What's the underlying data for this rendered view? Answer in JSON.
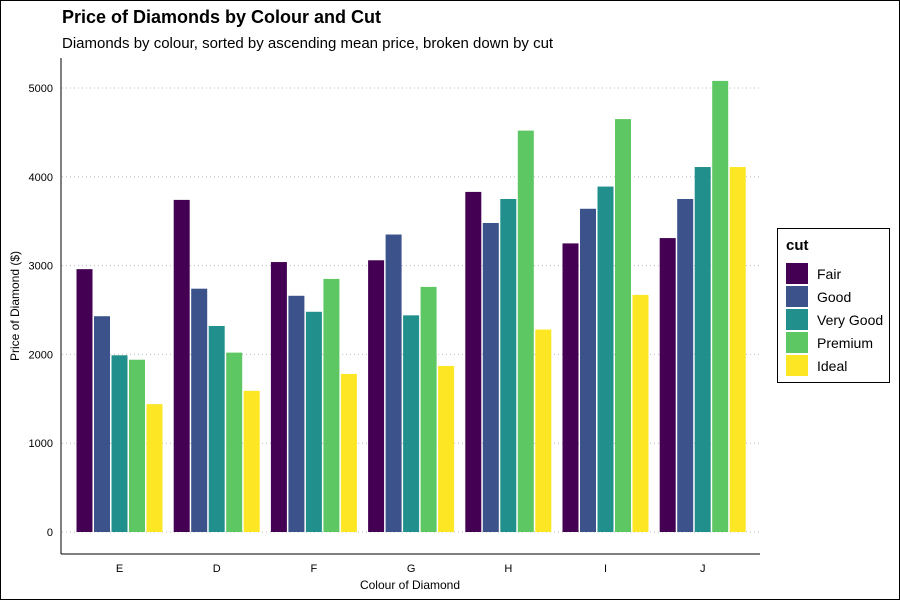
{
  "chart_data": {
    "type": "bar",
    "title": "Price of Diamonds by Colour and Cut",
    "subtitle": "Diamonds by colour, sorted by ascending mean price, broken down by cut",
    "xlabel": "Colour of Diamond",
    "ylabel": "Price of Diamond ($)",
    "categories": [
      "E",
      "D",
      "F",
      "G",
      "H",
      "I",
      "J"
    ],
    "ylim": [
      0,
      5300
    ],
    "yticks": [
      0,
      1000,
      2000,
      3000,
      4000,
      5000
    ],
    "grid": "horizontal-dotted",
    "legend_title": "cut",
    "legend_position": "right",
    "series": [
      {
        "name": "Fair",
        "color": "#440154",
        "values": [
          2960,
          3740,
          3040,
          3060,
          3830,
          3250,
          3310
        ]
      },
      {
        "name": "Good",
        "color": "#3B528B",
        "values": [
          2430,
          2740,
          2660,
          3350,
          3480,
          3640,
          3750
        ]
      },
      {
        "name": "Very Good",
        "color": "#21908C",
        "values": [
          1990,
          2320,
          2480,
          2440,
          3750,
          3890,
          4110
        ]
      },
      {
        "name": "Premium",
        "color": "#5DC863",
        "values": [
          1940,
          2020,
          2850,
          2760,
          4520,
          4650,
          5080
        ]
      },
      {
        "name": "Ideal",
        "color": "#FDE725",
        "values": [
          1440,
          1590,
          1780,
          1870,
          2280,
          2670,
          4110
        ]
      }
    ]
  }
}
